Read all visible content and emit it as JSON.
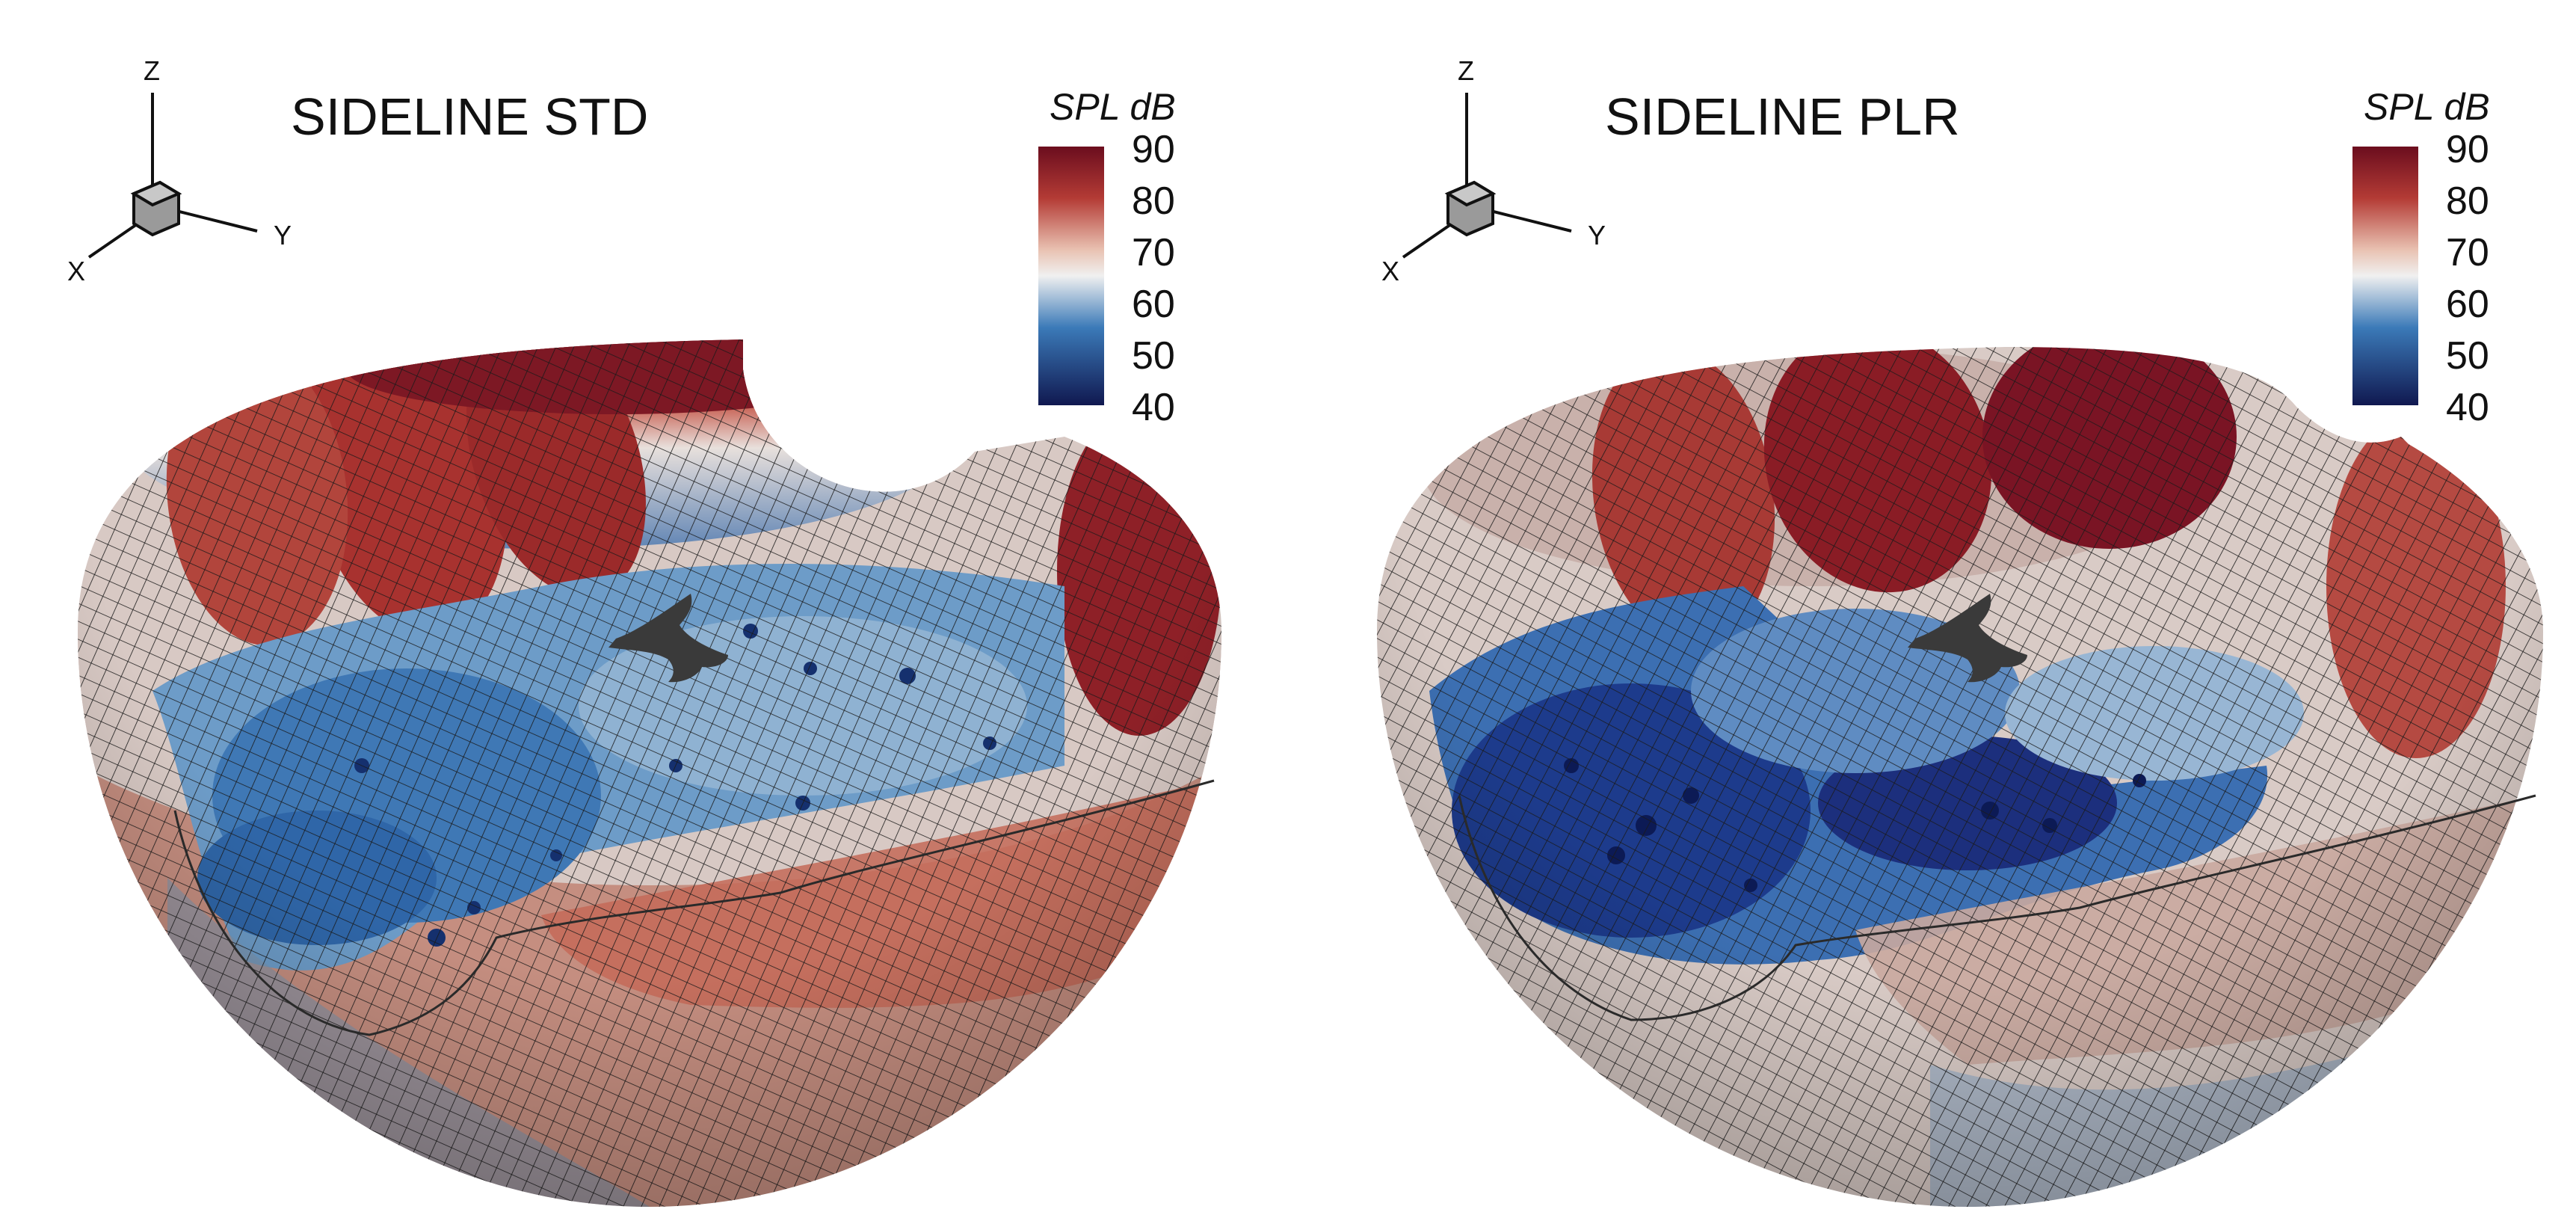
{
  "panels": [
    {
      "title": "SIDELINE STD",
      "colorbar": {
        "label": "SPL dB",
        "ticks": [
          "90",
          "80",
          "70",
          "60",
          "50",
          "40"
        ]
      },
      "axes": {
        "z": "Z",
        "y": "Y",
        "x": "X"
      }
    },
    {
      "title": "SIDELINE PLR",
      "colorbar": {
        "label": "SPL dB",
        "ticks": [
          "90",
          "80",
          "70",
          "60",
          "50",
          "40"
        ]
      },
      "axes": {
        "z": "Z",
        "y": "Y",
        "x": "X"
      }
    }
  ],
  "colors": {
    "spl_90": "#6b0d1e",
    "spl_80": "#b43b35",
    "spl_70": "#e9c2b2",
    "spl_60": "#f0f0f0",
    "spl_50": "#3b7ab8",
    "spl_40": "#101850"
  }
}
